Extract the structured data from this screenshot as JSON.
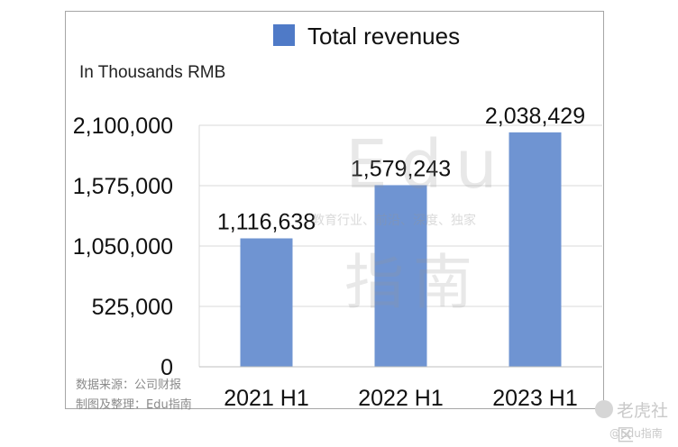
{
  "chart_data": {
    "type": "bar",
    "categories": [
      "2021 H1",
      "2022 H1",
      "2023 H1"
    ],
    "series": [
      {
        "name": "Total revenues",
        "values": [
          1116638,
          1579243,
          2038429
        ]
      }
    ],
    "data_labels": [
      "1,116,638",
      "1,579,243",
      "2,038,429"
    ],
    "ylabel": "In Thousands RMB",
    "ylim": [
      0,
      2100000
    ],
    "yticks": [
      0,
      525000,
      1050000,
      1575000,
      2100000
    ],
    "ytick_labels": [
      "0",
      "525,000",
      "1,050,000",
      "1,575,000",
      "2,100,000"
    ],
    "grid": true,
    "legend_position": "top",
    "bar_color": "#6f94d2",
    "legend_color": "#4f7ac7"
  },
  "source": {
    "line1": "数据来源：公司财报",
    "line2": "制图及整理：Edu指南"
  },
  "watermark": {
    "edu": "Edu",
    "tagline": "教育行业、前沿、深度、独家",
    "zhinan": "指南",
    "corner_logo": "老虎社区",
    "corner_handle": "@Edu指南"
  }
}
